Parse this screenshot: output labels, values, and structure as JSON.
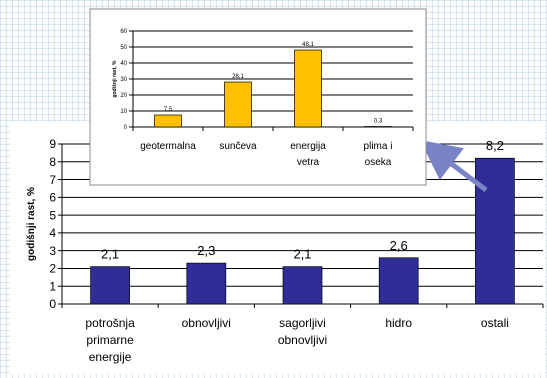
{
  "chart_data": [
    {
      "id": "main",
      "type": "bar",
      "categories": [
        [
          "potrošnja",
          "primarne",
          "energije"
        ],
        [
          "obnovljivi"
        ],
        [
          "sagorljivi",
          "obnovljivi"
        ],
        [
          "hidro"
        ],
        [
          "ostali"
        ]
      ],
      "values": [
        2.1,
        2.3,
        2.1,
        2.6,
        8.2
      ],
      "value_labels": [
        "2,1",
        "2,3",
        "2,1",
        "2,6",
        "8,2"
      ],
      "ylabel": "godišnji rast, %",
      "ylim": [
        0,
        9
      ],
      "yticks": [
        "0",
        "1",
        "2",
        "3",
        "4",
        "5",
        "6",
        "7",
        "8",
        "9"
      ],
      "grid": true,
      "bar_color": "#2e2e96"
    },
    {
      "id": "inset",
      "type": "bar",
      "categories": [
        [
          "geotermalna"
        ],
        [
          "sunčeva"
        ],
        [
          "energija",
          "vetra"
        ],
        [
          "plima i",
          "oseka"
        ]
      ],
      "values": [
        7.5,
        28.1,
        48.1,
        0.3
      ],
      "value_labels": [
        "7,5",
        "28,1",
        "48,1",
        "0,3"
      ],
      "ylabel": "godišnji rast, %",
      "ylim": [
        0,
        60
      ],
      "yticks": [
        "0",
        "10",
        "20",
        "30",
        "40",
        "50",
        "60"
      ],
      "grid": true,
      "bar_color": "#ffc000"
    }
  ],
  "colors": {
    "arrow": "#7a83c6"
  }
}
